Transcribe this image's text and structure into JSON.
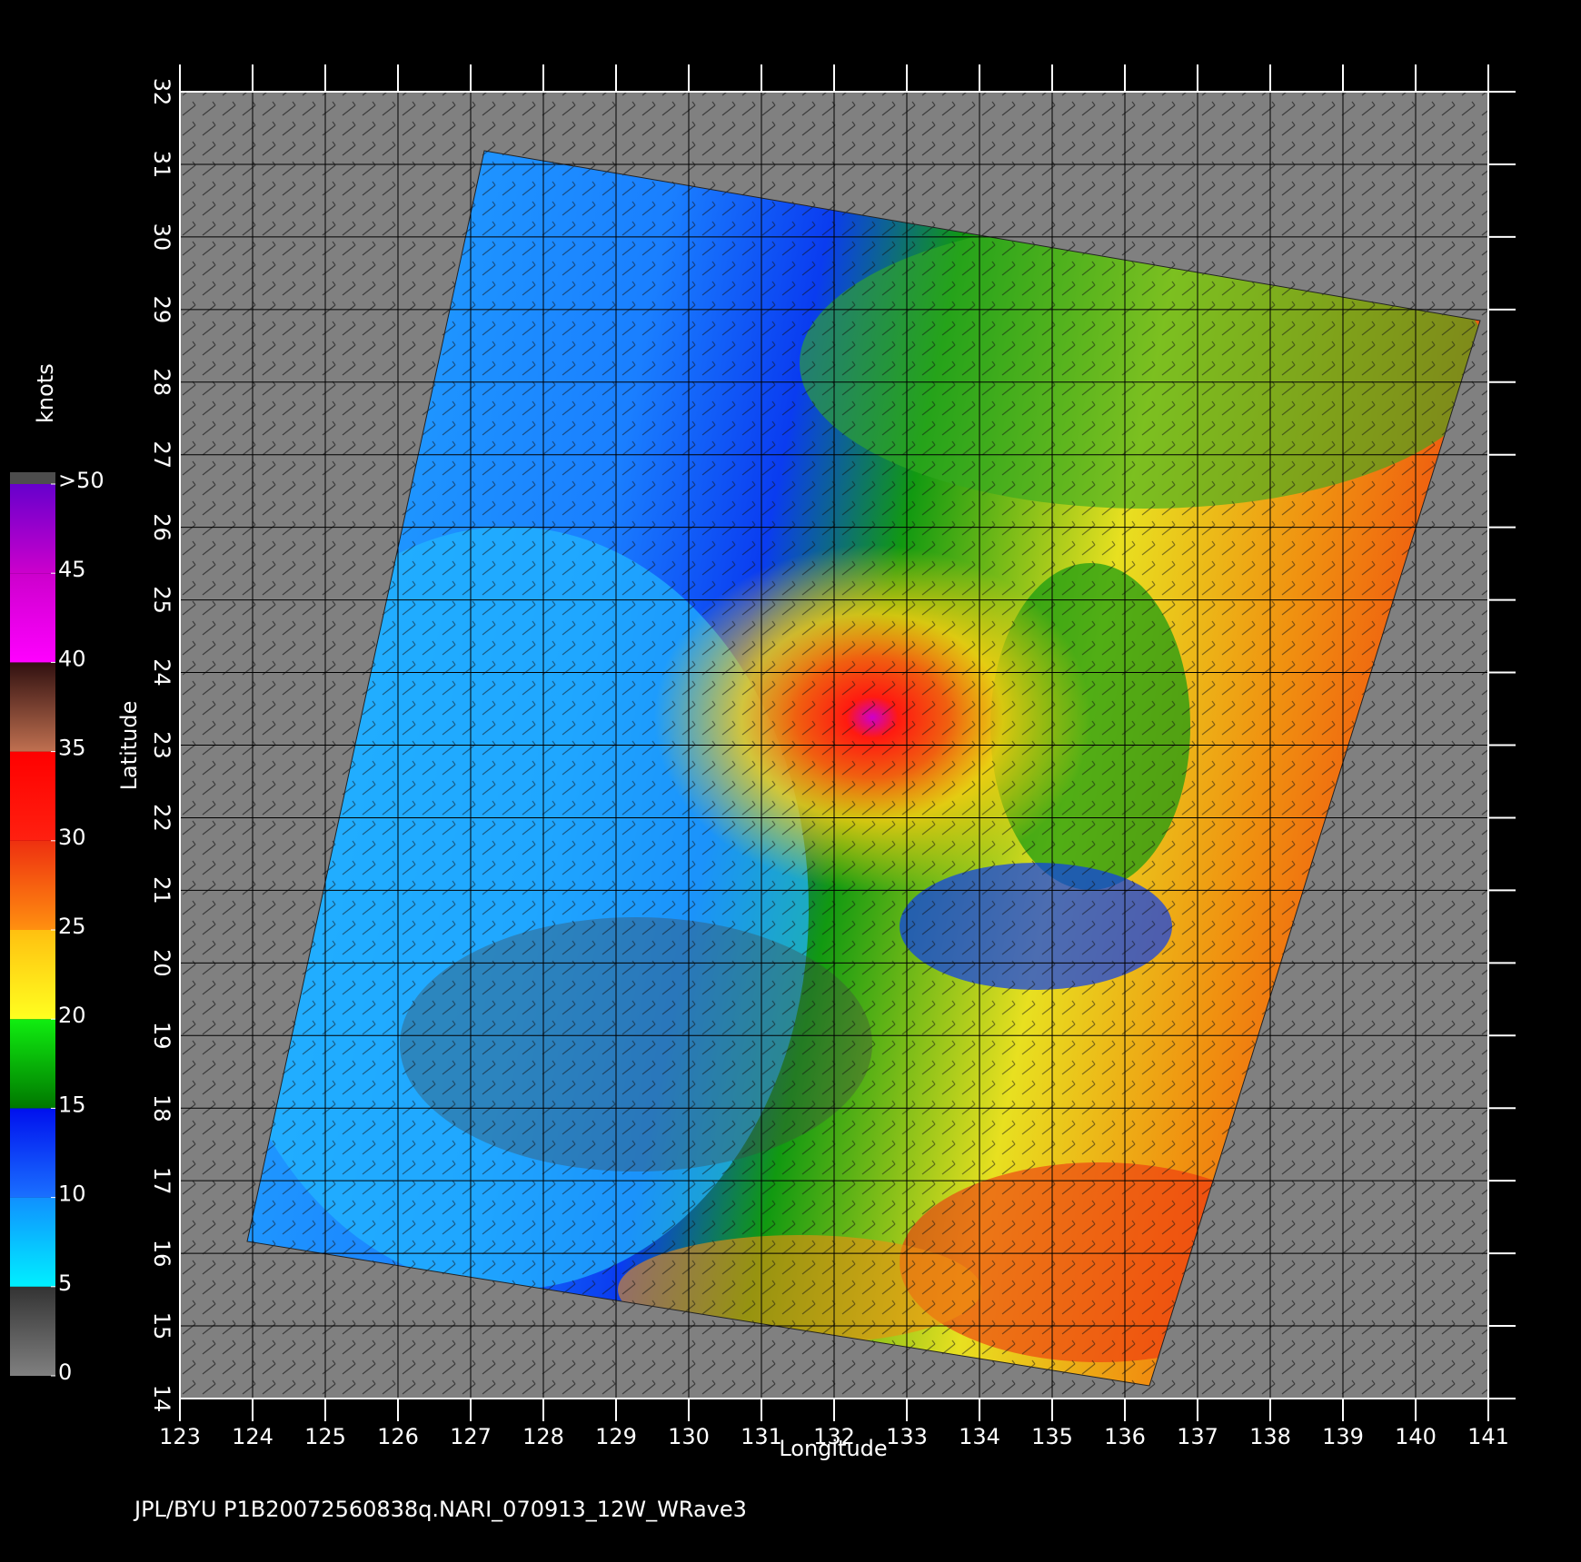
{
  "chart_data": {
    "type": "map",
    "xlabel": "Longitude",
    "ylabel": "Latitude",
    "footer": "JPL/BYU  P1B20072560838q.NARI_070913_12W_WRave3",
    "xlim": [
      123,
      141
    ],
    "ylim": [
      14,
      32
    ],
    "xticks": [
      123,
      124,
      125,
      126,
      127,
      128,
      129,
      130,
      131,
      132,
      133,
      134,
      135,
      136,
      137,
      138,
      139,
      140,
      141
    ],
    "yticks": [
      14,
      15,
      16,
      17,
      18,
      19,
      20,
      21,
      22,
      23,
      24,
      25,
      26,
      27,
      28,
      29,
      30,
      31,
      32
    ],
    "grid": true,
    "colorbar": {
      "label": "knots",
      "lim": [
        0,
        50
      ],
      "ticks": [
        0,
        5,
        10,
        15,
        20,
        25,
        30,
        35,
        40,
        45,
        {
          "value": 50,
          "label": ">50"
        }
      ]
    }
  }
}
